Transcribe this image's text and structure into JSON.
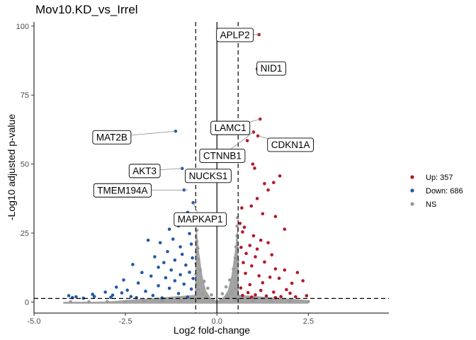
{
  "chart_data": {
    "type": "scatter",
    "title": "Mov10.KD_vs_Irrel",
    "xlabel": "Log2 fold-change",
    "ylabel": "-Log10 adjusted p-value",
    "xlim": [
      -5,
      4.7
    ],
    "ylim": [
      -4,
      101.5
    ],
    "x_ticks": [
      -5,
      -2.5,
      0,
      2.5
    ],
    "x_tick_labels": [
      "-5.0",
      "-2.5",
      "0.0",
      "2.5"
    ],
    "y_ticks": [
      0,
      25,
      50,
      75,
      100
    ],
    "y_tick_labels": [
      "0",
      "25",
      "50",
      "75",
      "100"
    ],
    "grid": false,
    "thresholds": {
      "log2fc": [
        -0.58,
        0.58
      ],
      "neg_log10_padj": 1.3
    },
    "vertical_zero_line": true,
    "legend_position": "right",
    "colors": {
      "up": "#b2182b",
      "down": "#2259a6",
      "ns": "#999999"
    },
    "series": [
      {
        "name": "Up: 357",
        "color": "#b2182b",
        "key": "up",
        "points": [
          [
            1.15,
            96.9
          ],
          [
            1.1,
            84.5
          ],
          [
            1.18,
            66.3
          ],
          [
            1.12,
            60.2
          ],
          [
            1.0,
            61.6
          ],
          [
            0.83,
            58.5
          ],
          [
            0.98,
            50.0
          ],
          [
            1.03,
            48.5
          ],
          [
            1.72,
            45.7
          ],
          [
            1.55,
            43.3
          ],
          [
            1.3,
            42.9
          ],
          [
            1.4,
            40.6
          ],
          [
            1.1,
            37.5
          ],
          [
            0.94,
            34.8
          ],
          [
            1.25,
            32.0
          ],
          [
            1.6,
            31.0
          ],
          [
            1.85,
            26.4
          ],
          [
            0.75,
            27.1
          ],
          [
            0.63,
            28.5
          ],
          [
            0.68,
            34.1
          ],
          [
            0.7,
            25.4
          ],
          [
            1.0,
            24.0
          ],
          [
            1.2,
            22.4
          ],
          [
            1.4,
            21.5
          ],
          [
            0.9,
            20.5
          ],
          [
            1.1,
            19.2
          ],
          [
            0.66,
            19.8
          ],
          [
            0.8,
            17.6
          ],
          [
            1.5,
            17.1
          ],
          [
            1.05,
            16.4
          ],
          [
            1.3,
            14.5
          ],
          [
            0.72,
            14.3
          ],
          [
            0.95,
            13.1
          ],
          [
            1.6,
            12.0
          ],
          [
            1.85,
            11.6
          ],
          [
            2.2,
            10.7
          ],
          [
            2.35,
            7.7
          ],
          [
            2.05,
            6.8
          ],
          [
            0.78,
            10.4
          ],
          [
            1.15,
            9.5
          ],
          [
            1.45,
            9.0
          ],
          [
            1.7,
            8.6
          ],
          [
            1.25,
            7.0
          ],
          [
            0.9,
            6.3
          ],
          [
            2.0,
            3.2
          ],
          [
            2.45,
            2.3
          ],
          [
            1.9,
            4.5
          ],
          [
            1.55,
            3.6
          ],
          [
            1.2,
            4.2
          ],
          [
            0.85,
            3.4
          ],
          [
            0.65,
            5.1
          ],
          [
            1.05,
            2.6
          ],
          [
            1.35,
            2.2
          ],
          [
            1.75,
            2.0
          ],
          [
            2.15,
            1.9
          ],
          [
            0.7,
            2.4
          ],
          [
            0.95,
            1.8
          ],
          [
            1.6,
            1.6
          ]
        ]
      },
      {
        "name": "Down: 686",
        "color": "#2259a6",
        "key": "down",
        "points": [
          [
            -1.13,
            61.9
          ],
          [
            -0.95,
            48.4
          ],
          [
            -0.8,
            47.4
          ],
          [
            -0.78,
            43.8
          ],
          [
            -0.9,
            40.6
          ],
          [
            -0.65,
            36.0
          ],
          [
            -0.8,
            32.5
          ],
          [
            -0.68,
            29.9
          ],
          [
            -0.88,
            29.0
          ],
          [
            -1.05,
            27.6
          ],
          [
            -1.3,
            26.4
          ],
          [
            -0.75,
            24.8
          ],
          [
            -1.2,
            22.8
          ],
          [
            -1.55,
            21.5
          ],
          [
            -1.88,
            22.4
          ],
          [
            -0.7,
            21.0
          ],
          [
            -1.0,
            20.0
          ],
          [
            -1.35,
            18.3
          ],
          [
            -0.95,
            17.3
          ],
          [
            -1.7,
            16.4
          ],
          [
            -0.67,
            16.0
          ],
          [
            -1.15,
            15.2
          ],
          [
            -1.45,
            14.3
          ],
          [
            -0.85,
            13.4
          ],
          [
            -1.6,
            12.6
          ],
          [
            -2.3,
            13.6
          ],
          [
            -1.25,
            11.6
          ],
          [
            -0.75,
            10.8
          ],
          [
            -2.05,
            10.7
          ],
          [
            -1.0,
            9.9
          ],
          [
            -1.8,
            9.4
          ],
          [
            -1.4,
            8.8
          ],
          [
            -0.65,
            8.5
          ],
          [
            -2.55,
            8.0
          ],
          [
            -1.15,
            7.7
          ],
          [
            -2.15,
            6.9
          ],
          [
            -0.9,
            6.5
          ],
          [
            -1.6,
            5.9
          ],
          [
            -2.75,
            5.4
          ],
          [
            -1.3,
            5.0
          ],
          [
            -0.7,
            4.7
          ],
          [
            -2.45,
            4.3
          ],
          [
            -1.95,
            3.9
          ],
          [
            -3.05,
            3.6
          ],
          [
            -2.6,
            3.3
          ],
          [
            -1.05,
            3.1
          ],
          [
            -3.4,
            2.8
          ],
          [
            -2.85,
            2.5
          ],
          [
            -3.85,
            1.9
          ],
          [
            -4.05,
            2.3
          ],
          [
            -3.35,
            2.0
          ],
          [
            -3.95,
            1.6
          ],
          [
            -2.9,
            1.7
          ],
          [
            -2.2,
            1.6
          ],
          [
            -1.5,
            1.5
          ],
          [
            -3.65,
            1.4
          ],
          [
            -0.8,
            1.8
          ],
          [
            -1.75,
            2.4
          ],
          [
            -2.35,
            2.0
          ]
        ]
      },
      {
        "name": "NS",
        "color": "#999999",
        "key": "ns",
        "points": [
          [
            0.0,
            0.2
          ],
          [
            -0.1,
            0.6
          ],
          [
            0.1,
            0.8
          ],
          [
            -0.2,
            1.2
          ],
          [
            0.2,
            1.4
          ],
          [
            -0.3,
            2.0
          ],
          [
            0.3,
            2.2
          ],
          [
            -0.4,
            3.0
          ],
          [
            0.4,
            3.3
          ],
          [
            -0.5,
            4.4
          ],
          [
            0.5,
            4.8
          ],
          [
            -0.55,
            6.5
          ],
          [
            0.55,
            7.0
          ],
          [
            -0.57,
            10.0
          ],
          [
            0.57,
            11.0
          ],
          [
            -0.57,
            14.0
          ],
          [
            0.57,
            15.0
          ],
          [
            -0.56,
            18.0
          ],
          [
            0.56,
            19.5
          ],
          [
            -0.55,
            22.0
          ],
          [
            0.55,
            24.0
          ],
          [
            -0.55,
            26.0
          ],
          [
            0.55,
            27.5
          ],
          [
            -0.56,
            29.0
          ],
          [
            0.56,
            30.5
          ],
          [
            -0.5,
            1.0
          ],
          [
            0.5,
            1.0
          ],
          [
            -1.0,
            0.6
          ],
          [
            1.0,
            0.6
          ],
          [
            -1.5,
            0.4
          ],
          [
            1.5,
            0.4
          ],
          [
            -2.0,
            0.3
          ],
          [
            2.0,
            0.3
          ],
          [
            -2.5,
            0.2
          ],
          [
            2.5,
            0.2
          ],
          [
            -3.0,
            0.2
          ],
          [
            -3.5,
            0.1
          ],
          [
            -4.0,
            0.1
          ],
          [
            0.15,
            3.0
          ],
          [
            -0.15,
            2.6
          ],
          [
            0.25,
            5.5
          ],
          [
            -0.25,
            5.0
          ],
          [
            0.35,
            8.0
          ],
          [
            -0.35,
            7.5
          ],
          [
            0.45,
            12.0
          ],
          [
            -0.45,
            11.5
          ],
          [
            0.5,
            16.0
          ],
          [
            -0.5,
            15.5
          ],
          [
            0.52,
            20.0
          ],
          [
            -0.52,
            19.5
          ]
        ]
      }
    ],
    "labels": [
      {
        "text": "APLP2",
        "x": 1.15,
        "y": 96.9
      },
      {
        "text": "NID1",
        "x": 1.1,
        "y": 84.5
      },
      {
        "text": "LAMC1",
        "x": 1.18,
        "y": 66.3
      },
      {
        "text": "CDKN1A",
        "x": 1.12,
        "y": 60.2
      },
      {
        "text": "CTNNB1",
        "x": 1.0,
        "y": 61.6
      },
      {
        "text": "MAT2B",
        "x": -1.13,
        "y": 61.9
      },
      {
        "text": "AKT3",
        "x": -0.95,
        "y": 48.4
      },
      {
        "text": "NUCKS1",
        "x": -0.78,
        "y": 43.8
      },
      {
        "text": "TMEM194A",
        "x": -0.8,
        "y": 40.6
      },
      {
        "text": "MAPKAP1",
        "x": -0.65,
        "y": 36.0
      }
    ]
  }
}
